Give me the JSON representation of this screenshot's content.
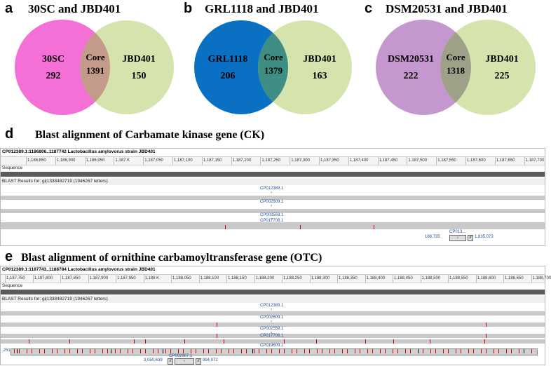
{
  "panels": {
    "a": {
      "label": "a",
      "title": "30SC and JBD401",
      "left_name": "30SC",
      "left_count": "292",
      "core_name": "Core",
      "core_count": "1391",
      "right_name": "JBD401",
      "right_count": "150",
      "left_color": "#f46fd6",
      "right_color": "#d5e3ad",
      "overlap_color": "#c49a8a"
    },
    "b": {
      "label": "b",
      "title": "GRL1118 and JBD401",
      "left_name": "GRL1118",
      "left_count": "206",
      "core_name": "Core",
      "core_count": "1379",
      "right_name": "JBD401",
      "right_count": "163",
      "left_color": "#0a70c4",
      "right_color": "#d5e3ad",
      "overlap_color": "#3e8e84"
    },
    "c": {
      "label": "c",
      "title": "DSM20531 and JBD401",
      "left_name": "DSM20531",
      "left_count": "222",
      "core_name": "Core",
      "core_count": "1318",
      "right_name": "JBD401",
      "right_count": "225",
      "left_color": "#c498cf",
      "right_color": "#d5e3ad",
      "overlap_color": "#9fa088"
    }
  },
  "blast_d": {
    "label": "d",
    "title": "Blast alignment of Carbamate kinase gene (CK)",
    "header": "CP012389.1:1186806..1187742 Lactobacillus amylovorus strain JBD401",
    "ticks": [
      "1,186,850",
      "1,186,900",
      "1,186,950",
      "1,187 K",
      "1,187,050",
      "1,187,100",
      "1,187,150",
      "1,187,200",
      "1,187,250",
      "1,187,300",
      "1,187,350",
      "1,187,400",
      "1,187,450",
      "1,187,500",
      "1,187,550",
      "1,187,600",
      "1,187,650",
      "1,187,700"
    ],
    "sequence_label": "Sequence",
    "blast_label": "BLAST Results for: gi|1338482719  (1946267 letters)",
    "hits": [
      "CP012389.1",
      "CP002609.1",
      "CP002559.1",
      "CP017706.1"
    ],
    "extra_hit": "CP013...",
    "coord_left": "188,735",
    "coord_right": "1,835,073"
  },
  "blast_e": {
    "label": "e",
    "title": "Blast alignment of ornithine carbamoyltransferase gene (OTC)",
    "header": "CP012389.1:1187743..1188784 Lactobacillus amylovorus strain JBD401",
    "ticks": [
      "1,187,750",
      "1,187,800",
      "1,187,850",
      "1,187,900",
      "1,187,950",
      "1,188 K",
      "1,188,050",
      "1,188,100",
      "1,188,150",
      "1,188,200",
      "1,188,250",
      "1,188,300",
      "1,188,350",
      "1,188,400",
      "1,188,450",
      "1,188,500",
      "1,188,550",
      "1,188,600",
      "1,188,650",
      "1,188,700"
    ],
    "sequence_label": "Sequence",
    "blast_label": "BLAST Results for: gi|1338482719  (1946267 letters)",
    "hits": [
      "CP012389.1",
      "CP002609.1",
      "CP002559.1",
      "CP017706.1",
      "CP019609.1"
    ],
    "extra_hit": "CP002987.1",
    "coord_left": "3,050,639",
    "coord_right": "994,072",
    "side_left": ",251"
  }
}
